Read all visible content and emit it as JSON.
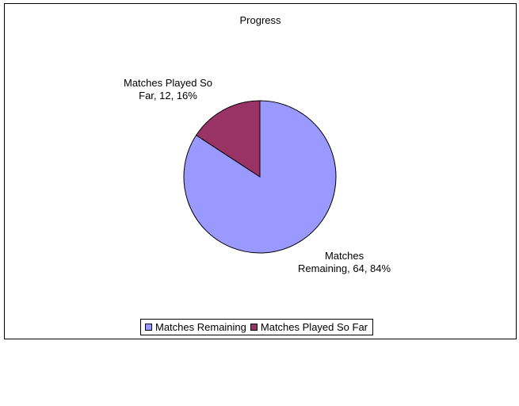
{
  "chart_data": {
    "type": "pie",
    "title": "Progress",
    "slices": [
      {
        "name": "Matches Remaining",
        "value": 64,
        "percent": 84,
        "color": "#9999ff",
        "label_lines": [
          "Matches",
          "Remaining, 64, 84%"
        ]
      },
      {
        "name": "Matches Played So Far",
        "value": 12,
        "percent": 16,
        "color": "#993366",
        "label_lines": [
          "Matches Played So",
          "Far, 12, 16%"
        ]
      }
    ],
    "legend": {
      "placement": "bottom",
      "entries": [
        "Matches Remaining",
        "Matches Played So Far"
      ]
    }
  }
}
